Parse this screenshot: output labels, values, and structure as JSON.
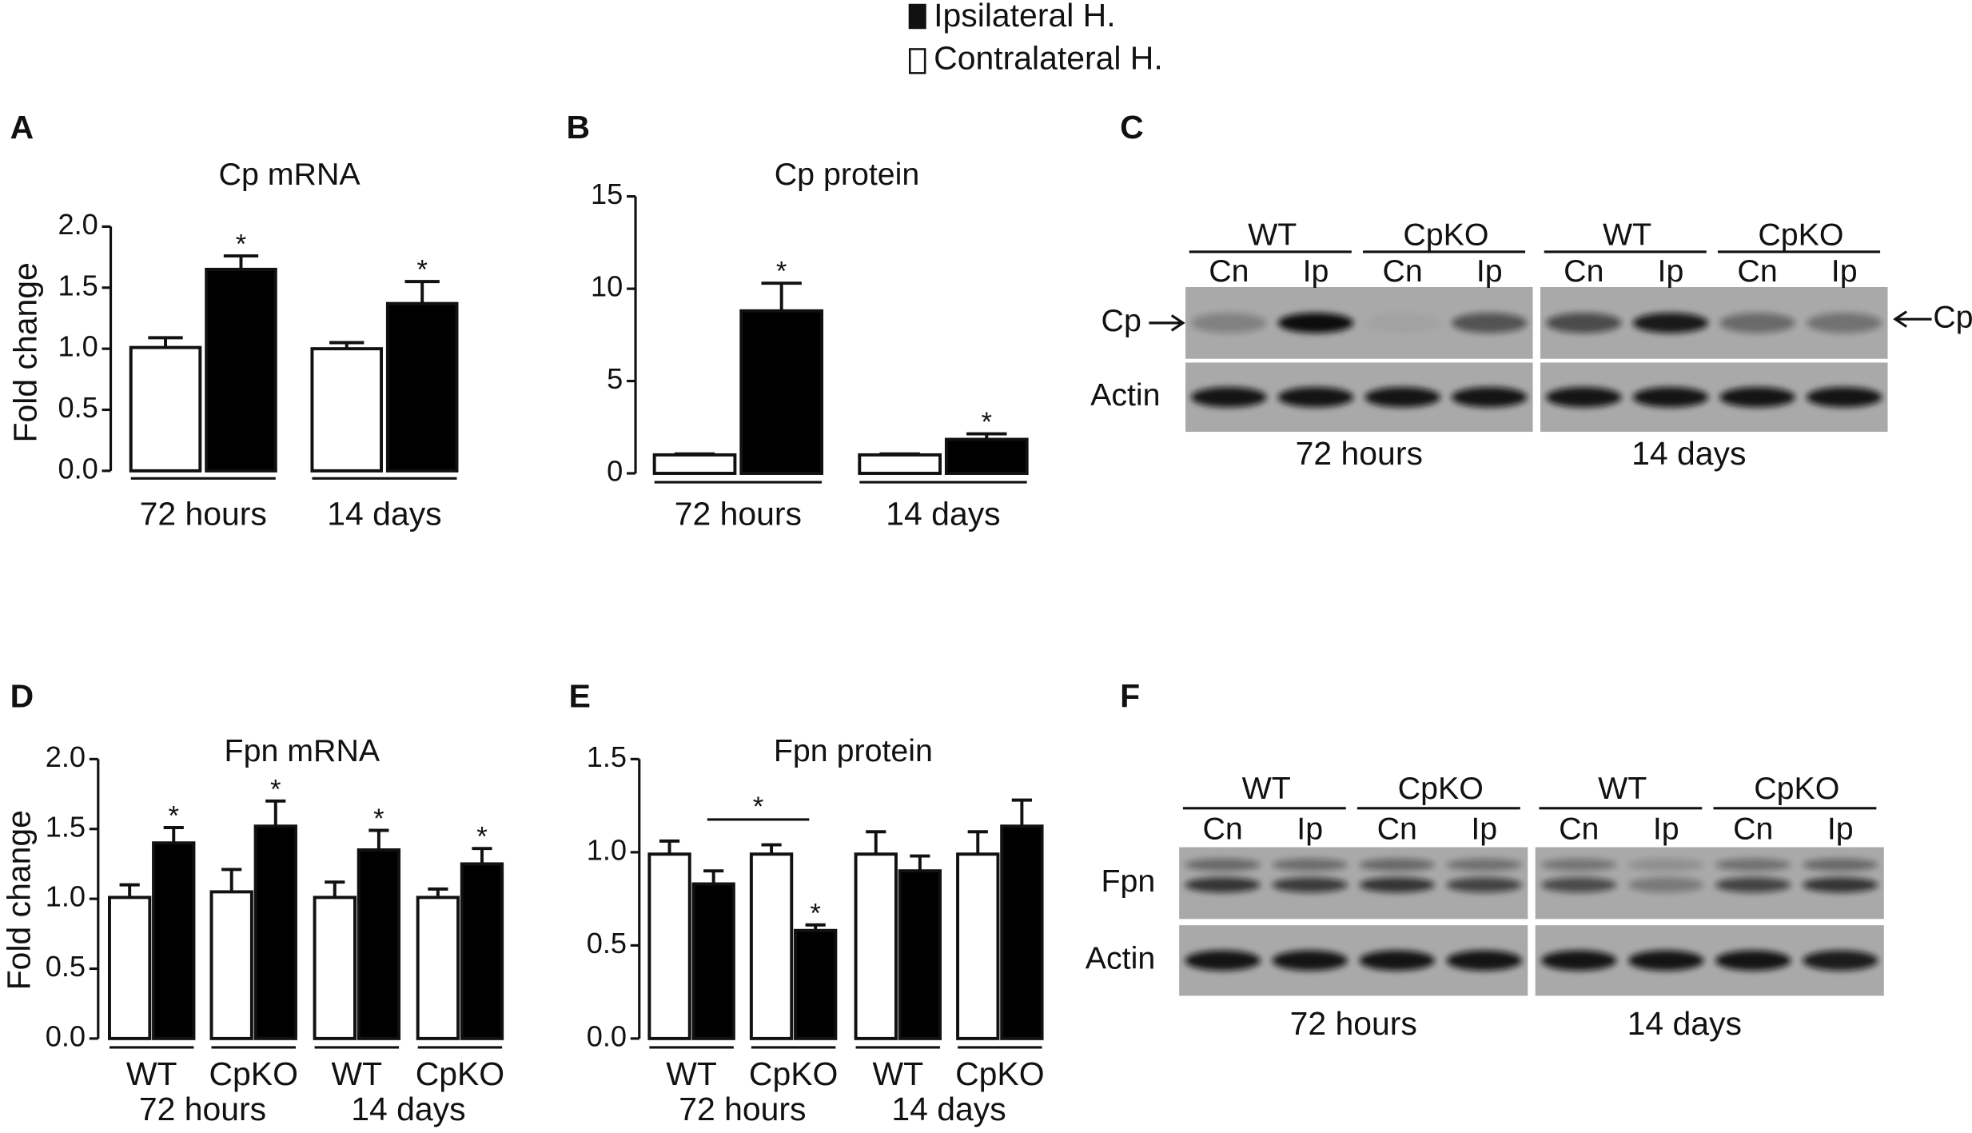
{
  "chart_data": [
    {
      "type": "bar",
      "panel": "A",
      "title": "Cp mRNA",
      "y_label": "Fold change",
      "categories": [
        "72 hours",
        "14 days"
      ],
      "series": [
        {
          "name": "Contralateral H.",
          "color": "#ffffff",
          "values": [
            1.01,
            1.0
          ],
          "errors": [
            0.08,
            0.05
          ],
          "annotations": [
            null,
            null
          ]
        },
        {
          "name": "Ipsilateral H.",
          "color": "#000000",
          "values": [
            1.65,
            1.37
          ],
          "errors": [
            0.11,
            0.18
          ],
          "annotations": [
            "*",
            "*"
          ]
        }
      ],
      "ylim": [
        0,
        2
      ],
      "yticks": [
        {
          "value": 0,
          "label": "0.0"
        },
        {
          "value": 0.5,
          "label": "0.5"
        },
        {
          "value": 1,
          "label": "1.0"
        },
        {
          "value": 1.5,
          "label": "1.5"
        },
        {
          "value": 2,
          "label": "2.0"
        }
      ]
    },
    {
      "type": "bar",
      "panel": "B",
      "title": "Cp protein",
      "categories": [
        "72 hours",
        "14 days"
      ],
      "series": [
        {
          "name": "Contralateral H.",
          "color": "#ffffff",
          "values": [
            1.0,
            1.0
          ],
          "errors": [
            0.05,
            0.05
          ],
          "annotations": [
            null,
            null
          ]
        },
        {
          "name": "Ipsilateral H.",
          "color": "#000000",
          "values": [
            8.8,
            1.84
          ],
          "errors": [
            1.5,
            0.3
          ],
          "annotations": [
            "*",
            "*"
          ]
        }
      ],
      "ylim": [
        0,
        15
      ],
      "yticks": [
        0,
        5,
        10,
        15
      ]
    },
    {
      "type": "bar",
      "panel": "D",
      "title": "Fpn mRNA",
      "y_label": "Fold change",
      "categories": [
        "WT",
        "CpKO",
        "WT",
        "CpKO"
      ],
      "group_labels": [
        "72 hours",
        "14 days"
      ],
      "series": [
        {
          "name": "Contralateral H.",
          "color": "#ffffff",
          "values": [
            1.01,
            1.05,
            1.01,
            1.01
          ],
          "errors": [
            0.09,
            0.16,
            0.11,
            0.06
          ],
          "annotations": [
            null,
            null,
            null,
            null
          ]
        },
        {
          "name": "Ipsilateral H.",
          "color": "#000000",
          "values": [
            1.4,
            1.52,
            1.35,
            1.25
          ],
          "errors": [
            0.11,
            0.18,
            0.14,
            0.11
          ],
          "annotations": [
            "*",
            "*",
            "*",
            "*"
          ]
        }
      ],
      "ylim": [
        0,
        2
      ],
      "yticks": [
        {
          "value": 0,
          "label": "0.0"
        },
        {
          "value": 0.5,
          "label": "0.5"
        },
        {
          "value": 1,
          "label": "1.0"
        },
        {
          "value": 1.5,
          "label": "1.5"
        },
        {
          "value": 2,
          "label": "2.0"
        }
      ]
    },
    {
      "type": "bar",
      "panel": "E",
      "title": "Fpn protein",
      "categories": [
        "WT",
        "CpKO",
        "WT",
        "CpKO"
      ],
      "group_labels": [
        "72 hours",
        "14 days"
      ],
      "series": [
        {
          "name": "Contralateral H.",
          "color": "#ffffff",
          "values": [
            0.99,
            0.99,
            0.99,
            0.99
          ],
          "errors": [
            0.07,
            0.05,
            0.12,
            0.12
          ],
          "annotations": [
            null,
            null,
            null,
            null
          ]
        },
        {
          "name": "Ipsilateral H.",
          "color": "#000000",
          "values": [
            0.83,
            0.58,
            0.9,
            1.14
          ],
          "errors": [
            0.07,
            0.03,
            0.08,
            0.14
          ],
          "annotations": [
            null,
            "*",
            null,
            null
          ]
        }
      ],
      "bracket_label": "*",
      "ylim": [
        0,
        1.5
      ],
      "yticks": [
        {
          "value": 0,
          "label": "0.0"
        },
        {
          "value": 0.5,
          "label": "0.5"
        },
        {
          "value": 1,
          "label": "1.0"
        },
        {
          "value": 1.5,
          "label": "1.5"
        }
      ]
    }
  ],
  "blots": [
    {
      "panel": "C",
      "groups": [
        "WT",
        "CpKO",
        "WT",
        "CpKO"
      ],
      "lanes": [
        "Cn",
        "Ip",
        "Cn",
        "Ip",
        "Cn",
        "Ip",
        "Cn",
        "Ip"
      ],
      "rows": [
        "Cp",
        "Actin"
      ],
      "side_label": "Cp",
      "times": [
        "72 hours",
        "14 days"
      ]
    },
    {
      "panel": "F",
      "groups": [
        "WT",
        "CpKO",
        "WT",
        "CpKO"
      ],
      "lanes": [
        "Cn",
        "Ip",
        "Cn",
        "Ip",
        "Cn",
        "Ip",
        "Cn",
        "Ip"
      ],
      "rows": [
        "Fpn",
        "Actin"
      ],
      "times": [
        "72 hours",
        "14 days"
      ]
    }
  ]
}
